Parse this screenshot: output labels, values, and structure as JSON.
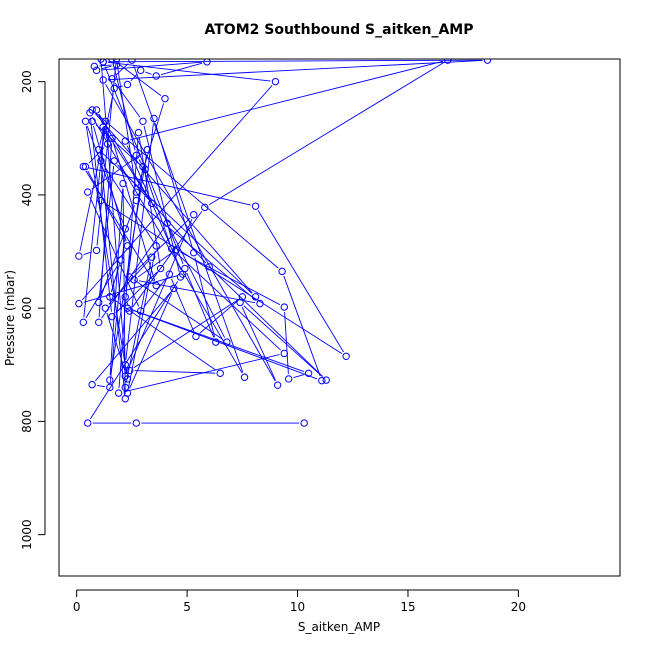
{
  "chart_data": {
    "type": "line",
    "title": "ATOM2 Southbound S_aitken_AMP",
    "xlabel": "S_aitken_AMP",
    "ylabel": "Pressure (mbar)",
    "xlim": [
      -0.8,
      24.6
    ],
    "ylim": [
      160,
      1073
    ],
    "y_reversed": true,
    "xticks": [
      0,
      5,
      10,
      15,
      20
    ],
    "yticks": [
      200,
      400,
      600,
      800,
      1000
    ],
    "grid": false,
    "line_color": "#0000ff",
    "marker": "open-circle",
    "series": [
      {
        "x": [
          1.1,
          2.2,
          3.5,
          5.3,
          6.3,
          4.9,
          1.2,
          0.8,
          1.8,
          0.9,
          5.9,
          3.6,
          2.9,
          2.3,
          1.7,
          0.1,
          0.9,
          1.8,
          2.7,
          4.0,
          1.6,
          2.7,
          3.1,
          0.7,
          2.3,
          0.4,
          1.4,
          1.3,
          0.9,
          3.4,
          1.2,
          1.1,
          12.2,
          8.1,
          0.3,
          3.6,
          1.6,
          1.0,
          4.1,
          6.8,
          2.4,
          5.3,
          2.2,
          2.2,
          3.4,
          1.3,
          2.3,
          0.4,
          2.2,
          1.5,
          0.7,
          4.4,
          2.3,
          3.6,
          1.1,
          2.2,
          2.1,
          1.5,
          3.2,
          0.5,
          2.9,
          4.2,
          5.4,
          7.5,
          2.4,
          6.5,
          1.5,
          2.0,
          0.3,
          1.3,
          1.0,
          8.1,
          0.7,
          9.3,
          11.1,
          2.3,
          10.5,
          9.6,
          9.4,
          4.5,
          2.6,
          8.3,
          2.7,
          1.0,
          1.7,
          6.0,
          11.3,
          7.4,
          9.1,
          1.2,
          18.6,
          1.2,
          9.0,
          0.1,
          4.8,
          2.2,
          16.8,
          5.8,
          2.4,
          2.2,
          3.0,
          4.3,
          9.4,
          1.9,
          2.8,
          3.8,
          1.6,
          0.6,
          7.6,
          2.5,
          1.6,
          3.0,
          4.7,
          0.5,
          2.7,
          10.3
        ],
        "y": [
          160,
          700,
          265,
          502,
          660,
          530,
          165,
          173,
          170,
          180,
          165,
          190,
          180,
          205,
          212,
          508,
          498,
          160,
          395,
          230,
          160,
          330,
          355,
          270,
          490,
          350,
          310,
          285,
          250,
          415,
          280,
          410,
          685,
          420,
          350,
          560,
          300,
          625,
          450,
          660,
          545,
          435,
          720,
          740,
          510,
          600,
          725,
          270,
          460,
          740,
          735,
          565,
          750,
          490,
          340,
          760,
          380,
          727,
          320,
          395,
          605,
          540,
          650,
          580,
          710,
          715,
          580,
          515,
          625,
          270,
          320,
          580,
          250,
          535,
          728,
          600,
          715,
          725,
          598,
          497,
          550,
          592,
          410,
          590,
          340,
          527,
          727,
          590,
          736,
          197,
          162,
          165,
          200,
          592,
          540,
          305,
          162,
          422,
          605,
          580,
          350,
          495,
          680,
          750,
          290,
          530,
          615,
          255,
          722,
          162,
          195,
          270,
          545,
          803,
          803,
          803
        ]
      }
    ]
  }
}
